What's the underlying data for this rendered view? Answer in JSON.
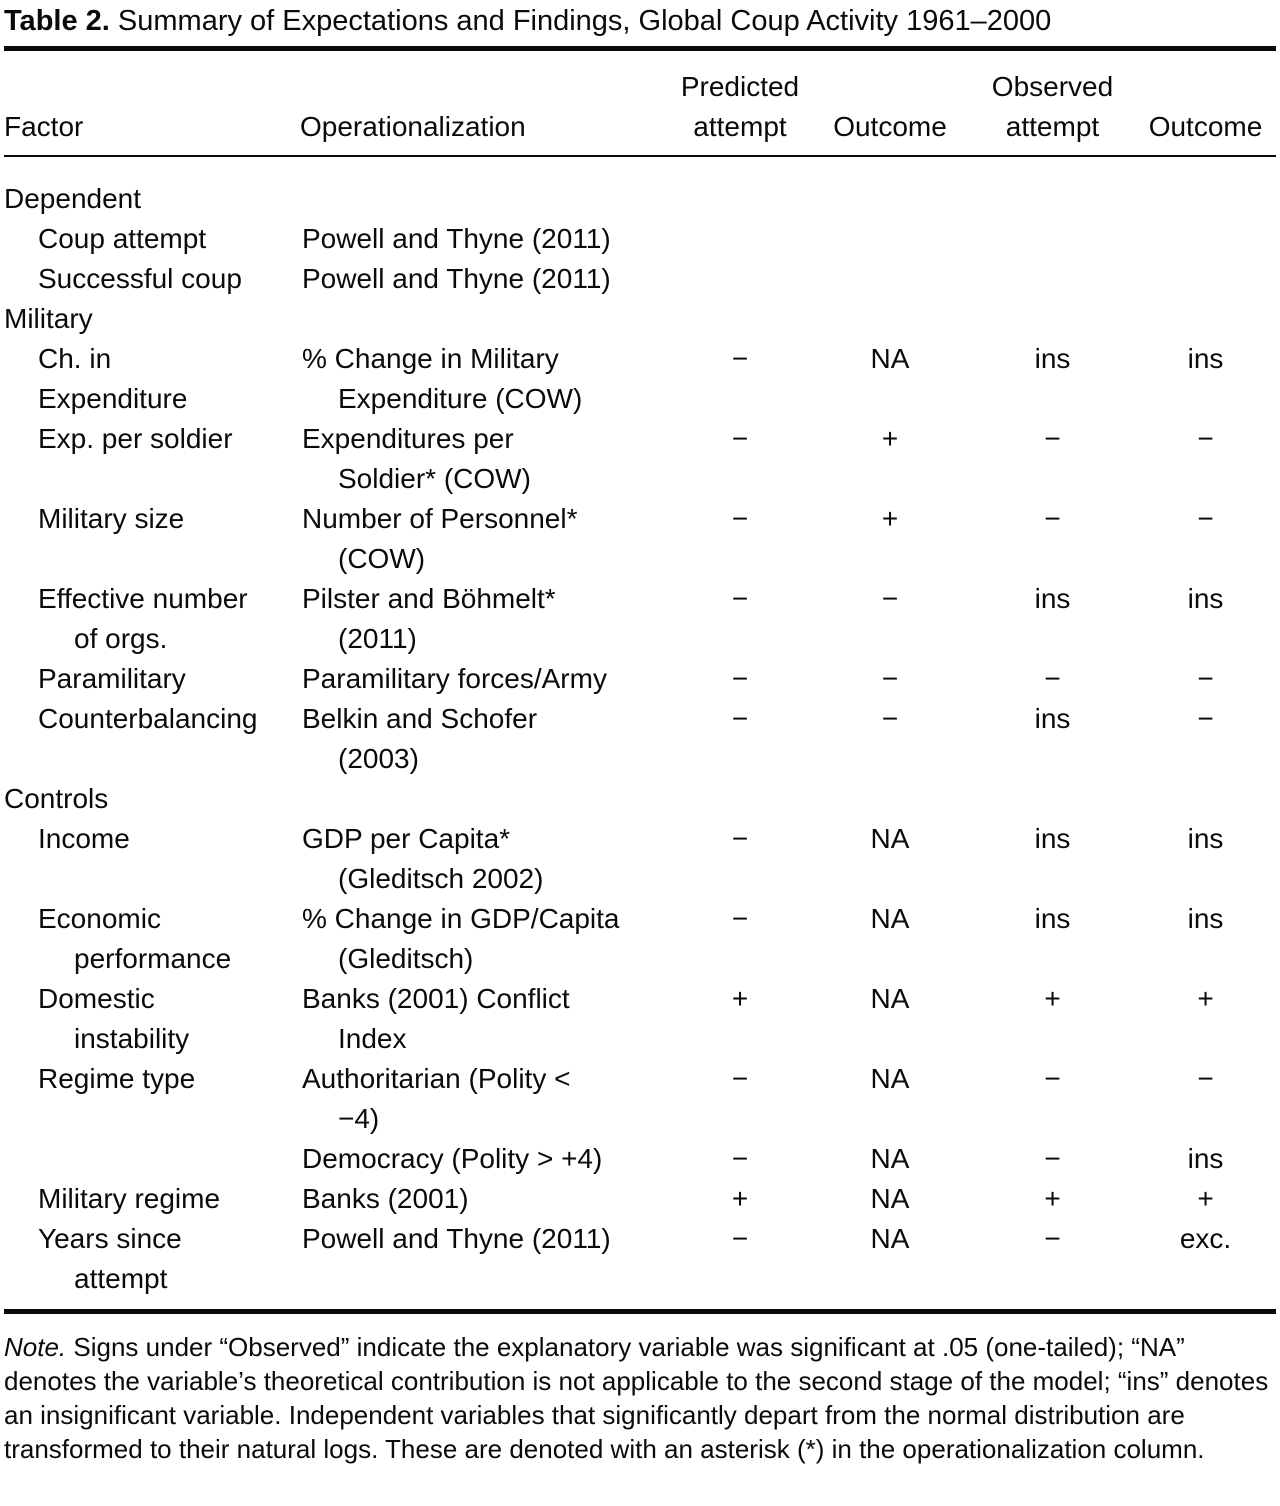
{
  "title": {
    "label": "Table 2.",
    "text": "Summary of Expectations and Findings, Global Coup Activity 1961–2000"
  },
  "table": {
    "header": {
      "predicted_group": "Predicted",
      "observed_group": "Observed",
      "factor": "Factor",
      "operationalization": "Operationalization",
      "predicted_attempt": "attempt",
      "predicted_outcome": "Outcome",
      "observed_attempt": "attempt",
      "observed_outcome": "Outcome"
    },
    "rows": [
      {
        "section": "Dependent"
      },
      {
        "factor": [
          {
            "t": "Coup attempt"
          }
        ],
        "op": [
          {
            "t": "Powell and Thyne (2011)"
          }
        ],
        "v": [
          "",
          "",
          "",
          ""
        ]
      },
      {
        "factor": [
          {
            "t": "Successful coup"
          }
        ],
        "op": [
          {
            "t": "Powell and Thyne (2011)"
          }
        ],
        "v": [
          "",
          "",
          "",
          ""
        ]
      },
      {
        "section": "Military"
      },
      {
        "factor": [
          {
            "t": "Ch. in"
          },
          {
            "t": "Expenditure"
          }
        ],
        "op": [
          {
            "t": "% Change in Military"
          },
          {
            "t": "Expenditure (COW)",
            "c": true
          }
        ],
        "v": [
          "−",
          "NA",
          "ins",
          "ins"
        ]
      },
      {
        "factor": [
          {
            "t": "Exp. per soldier"
          }
        ],
        "op": [
          {
            "t": "Expenditures per"
          },
          {
            "t": "Soldier* (COW)",
            "c": true
          }
        ],
        "v": [
          "−",
          "+",
          "−",
          "−"
        ]
      },
      {
        "factor": [
          {
            "t": "Military size"
          }
        ],
        "op": [
          {
            "t": "Number of Personnel*"
          },
          {
            "t": "(COW)",
            "c": true
          }
        ],
        "v": [
          "−",
          "+",
          "−",
          "−"
        ]
      },
      {
        "factor": [
          {
            "t": "Effective number"
          },
          {
            "t": "of orgs.",
            "c": true
          }
        ],
        "op": [
          {
            "t": "Pilster and Böhmelt*"
          },
          {
            "t": "(2011)",
            "c": true
          }
        ],
        "v": [
          "−",
          "−",
          "ins",
          "ins"
        ]
      },
      {
        "factor": [
          {
            "t": "Paramilitary"
          }
        ],
        "op": [
          {
            "t": "Paramilitary forces/Army"
          }
        ],
        "v": [
          "−",
          "−",
          "−",
          "−"
        ]
      },
      {
        "factor": [
          {
            "t": "Counterbalancing"
          }
        ],
        "op": [
          {
            "t": "Belkin and Schofer"
          },
          {
            "t": "(2003)",
            "c": true
          }
        ],
        "v": [
          "−",
          "−",
          "ins",
          "−"
        ]
      },
      {
        "section": "Controls"
      },
      {
        "factor": [
          {
            "t": "Income"
          }
        ],
        "op": [
          {
            "t": "GDP per Capita*"
          },
          {
            "t": "(Gleditsch 2002)",
            "c": true
          }
        ],
        "v": [
          "−",
          "NA",
          "ins",
          "ins"
        ]
      },
      {
        "factor": [
          {
            "t": "Economic"
          },
          {
            "t": "performance",
            "c": true
          }
        ],
        "op": [
          {
            "t": "% Change in GDP/Capita"
          },
          {
            "t": "(Gleditsch)",
            "c": true
          }
        ],
        "v": [
          "−",
          "NA",
          "ins",
          "ins"
        ]
      },
      {
        "factor": [
          {
            "t": "Domestic"
          },
          {
            "t": "instability",
            "c": true
          }
        ],
        "op": [
          {
            "t": "Banks (2001) Conflict"
          },
          {
            "t": "Index",
            "c": true
          }
        ],
        "v": [
          "+",
          "NA",
          "+",
          "+"
        ]
      },
      {
        "factor": [
          {
            "t": "Regime type"
          }
        ],
        "op": [
          {
            "t": "Authoritarian (Polity <"
          },
          {
            "t": "−4)",
            "c": true
          }
        ],
        "v": [
          "−",
          "NA",
          "−",
          "−"
        ]
      },
      {
        "factor": [],
        "op": [
          {
            "t": "Democracy (Polity > +4)"
          }
        ],
        "v": [
          "−",
          "NA",
          "−",
          "ins"
        ]
      },
      {
        "factor": [
          {
            "t": "Military regime"
          }
        ],
        "op": [
          {
            "t": "Banks (2001)"
          }
        ],
        "v": [
          "+",
          "NA",
          "+",
          "+"
        ]
      },
      {
        "factor": [
          {
            "t": "Years since"
          },
          {
            "t": "attempt",
            "c": true
          }
        ],
        "op": [
          {
            "t": "Powell and Thyne (2011)"
          }
        ],
        "v": [
          "−",
          "NA",
          "−",
          "exc."
        ]
      }
    ]
  },
  "note": {
    "label": "Note.",
    "text": "Signs under “Observed” indicate the explanatory variable was significant at .05 (one-tailed); “NA” denotes the variable’s theoretical contribution is not applicable to the second stage of the model; “ins” denotes an insignificant variable. Independent variables that significantly depart from the normal distribution are transformed to their natural logs. These are denoted with an asterisk (*) in the operationalization column."
  }
}
